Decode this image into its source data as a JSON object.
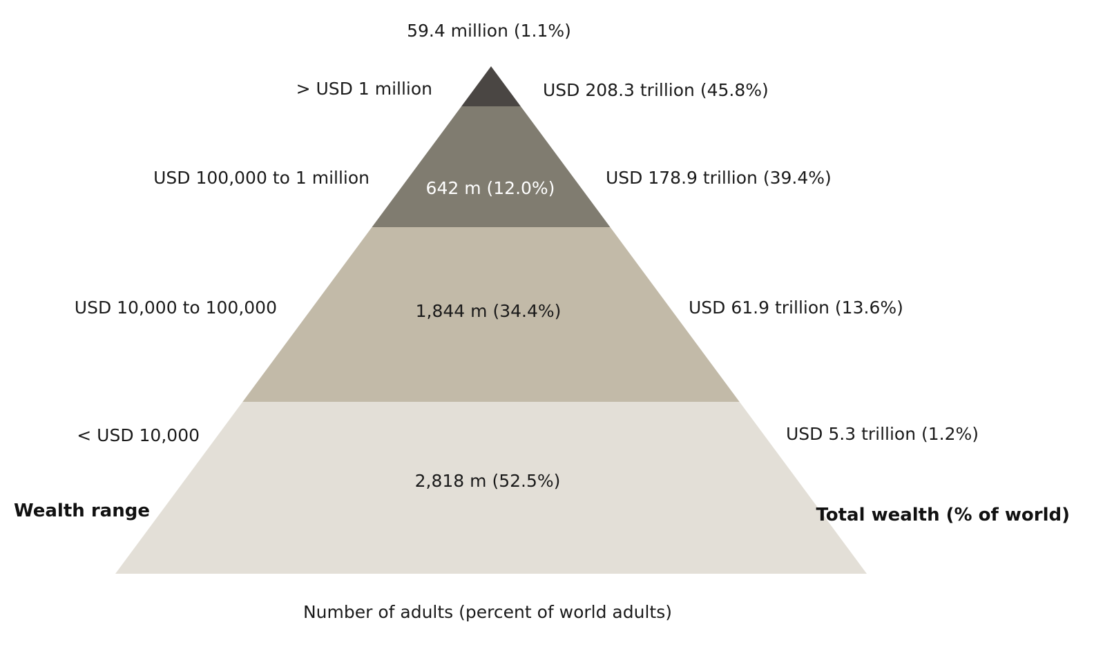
{
  "chart_data": {
    "type": "pyramid",
    "left_axis_label": "Wealth range",
    "right_axis_label": "Total wealth (% of world)",
    "bottom_label": "Number of adults (percent of world adults)",
    "tiers": [
      {
        "wealth_range": "> USD 1 million",
        "adults_label": "59.4 million (1.1%)",
        "adults_millions": 59.4,
        "adults_pct": 1.1,
        "total_wealth_label": "USD 208.3 trillion (45.8%)",
        "total_wealth_trillion": 208.3,
        "total_wealth_pct": 45.8,
        "color": "#4a4643"
      },
      {
        "wealth_range": "USD 100,000  to 1 million",
        "adults_label": "642 m (12.0%)",
        "adults_millions": 642,
        "adults_pct": 12.0,
        "total_wealth_label": "USD 178.9 trillion (39.4%)",
        "total_wealth_trillion": 178.9,
        "total_wealth_pct": 39.4,
        "color": "#807c70"
      },
      {
        "wealth_range": "USD 10,000  to 100,000",
        "adults_label": "1,844 m (34.4%)",
        "adults_millions": 1844,
        "adults_pct": 34.4,
        "total_wealth_label": "USD 61.9 trillion (13.6%)",
        "total_wealth_trillion": 61.9,
        "total_wealth_pct": 13.6,
        "color": "#c2baa8"
      },
      {
        "wealth_range": "< USD 10,000",
        "adults_label": "2,818 m (52.5%)",
        "adults_millions": 2818,
        "adults_pct": 52.5,
        "total_wealth_label": "USD 5.3 trillion (1.2%)",
        "total_wealth_trillion": 5.3,
        "total_wealth_pct": 1.2,
        "color": "#e3dfd7"
      }
    ]
  }
}
